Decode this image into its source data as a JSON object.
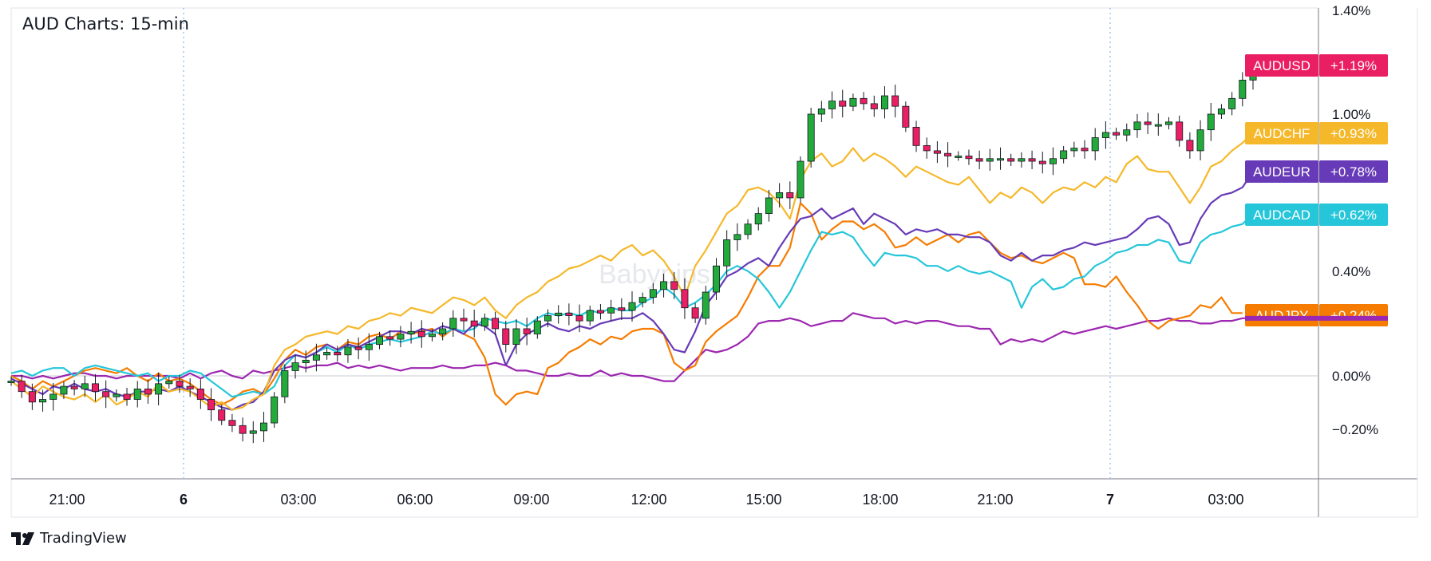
{
  "title": "AUD Charts: 15-min",
  "brand": "TradingView",
  "watermark": "Babypips",
  "chart_data": {
    "type": "line",
    "title": "AUD Charts: 15-min",
    "x_ticks": [
      "21:00",
      "6",
      "03:00",
      "06:00",
      "09:00",
      "12:00",
      "15:00",
      "18:00",
      "21:00",
      "7",
      "03:00"
    ],
    "y_ticks": [
      "1.40%",
      "1.00%",
      "0.40%",
      "0.00%",
      "−0.20%"
    ],
    "ylim": [
      -0.45,
      1.4
    ],
    "grid": false,
    "ylabel_position": "right",
    "series": [
      {
        "name": "AUDUSD",
        "label": "+1.19%",
        "color": "#e91e63",
        "style": "candlestick",
        "values": [
          -0.02,
          -0.06,
          -0.1,
          -0.09,
          -0.07,
          -0.04,
          -0.05,
          -0.03,
          -0.06,
          -0.08,
          -0.07,
          -0.09,
          -0.05,
          -0.07,
          -0.03,
          -0.02,
          -0.04,
          -0.05,
          -0.09,
          -0.13,
          -0.17,
          -0.19,
          -0.22,
          -0.21,
          -0.18,
          -0.08,
          0.02,
          0.05,
          0.06,
          0.08,
          0.09,
          0.08,
          0.11,
          0.1,
          0.12,
          0.15,
          0.14,
          0.16,
          0.17,
          0.15,
          0.16,
          0.18,
          0.22,
          0.21,
          0.19,
          0.22,
          0.18,
          0.12,
          0.18,
          0.16,
          0.21,
          0.23,
          0.24,
          0.23,
          0.21,
          0.25,
          0.24,
          0.26,
          0.25,
          0.28,
          0.3,
          0.33,
          0.36,
          0.33,
          0.26,
          0.22,
          0.32,
          0.42,
          0.52,
          0.54,
          0.58,
          0.62,
          0.68,
          0.7,
          0.68,
          0.82,
          1.0,
          1.02,
          1.05,
          1.03,
          1.06,
          1.04,
          1.02,
          1.07,
          1.03,
          0.95,
          0.88,
          0.86,
          0.85,
          0.84,
          0.84,
          0.83,
          0.82,
          0.83,
          0.83,
          0.82,
          0.83,
          0.82,
          0.81,
          0.83,
          0.86,
          0.87,
          0.86,
          0.91,
          0.93,
          0.92,
          0.94,
          0.97,
          0.96,
          0.96,
          0.97,
          0.9,
          0.86,
          0.94,
          1.0,
          1.02,
          1.06,
          1.13,
          1.19
        ]
      },
      {
        "name": "AUDCHF",
        "label": "+0.93%",
        "color": "#f5b82a",
        "values": [
          -0.02,
          -0.05,
          -0.08,
          -0.04,
          -0.06,
          -0.08,
          -0.09,
          -0.07,
          -0.1,
          -0.07,
          -0.11,
          -0.09,
          -0.06,
          -0.08,
          -0.03,
          -0.06,
          -0.05,
          -0.06,
          -0.09,
          -0.12,
          -0.1,
          -0.13,
          -0.12,
          -0.09,
          -0.07,
          0.04,
          0.1,
          0.12,
          0.15,
          0.16,
          0.17,
          0.16,
          0.19,
          0.18,
          0.21,
          0.22,
          0.24,
          0.23,
          0.26,
          0.25,
          0.24,
          0.27,
          0.3,
          0.29,
          0.27,
          0.3,
          0.25,
          0.22,
          0.27,
          0.3,
          0.32,
          0.36,
          0.38,
          0.41,
          0.42,
          0.44,
          0.46,
          0.44,
          0.48,
          0.5,
          0.46,
          0.48,
          0.44,
          0.38,
          0.3,
          0.42,
          0.48,
          0.55,
          0.62,
          0.65,
          0.71,
          0.72,
          0.7,
          0.66,
          0.6,
          0.75,
          0.82,
          0.85,
          0.8,
          0.82,
          0.87,
          0.82,
          0.85,
          0.83,
          0.8,
          0.76,
          0.8,
          0.78,
          0.76,
          0.74,
          0.73,
          0.76,
          0.71,
          0.66,
          0.7,
          0.68,
          0.72,
          0.7,
          0.66,
          0.7,
          0.72,
          0.71,
          0.74,
          0.72,
          0.76,
          0.74,
          0.81,
          0.84,
          0.79,
          0.78,
          0.78,
          0.72,
          0.66,
          0.72,
          0.8,
          0.82,
          0.86,
          0.89,
          0.93
        ]
      },
      {
        "name": "AUDEUR",
        "label": "+0.78%",
        "color": "#673ab7",
        "values": [
          -0.01,
          -0.03,
          -0.05,
          -0.07,
          -0.04,
          -0.05,
          -0.03,
          -0.05,
          -0.06,
          -0.05,
          -0.07,
          -0.08,
          -0.06,
          -0.06,
          -0.05,
          -0.06,
          -0.04,
          -0.06,
          -0.08,
          -0.1,
          -0.12,
          -0.13,
          -0.11,
          -0.1,
          -0.06,
          0.02,
          0.06,
          0.08,
          0.07,
          0.09,
          0.12,
          0.1,
          0.12,
          0.11,
          0.13,
          0.15,
          0.17,
          0.17,
          0.16,
          0.18,
          0.17,
          0.19,
          0.18,
          0.16,
          0.2,
          0.19,
          0.16,
          0.04,
          0.12,
          0.16,
          0.18,
          0.2,
          0.18,
          0.17,
          0.19,
          0.18,
          0.2,
          0.21,
          0.22,
          0.22,
          0.24,
          0.21,
          0.16,
          0.1,
          0.09,
          0.17,
          0.27,
          0.32,
          0.38,
          0.4,
          0.43,
          0.45,
          0.42,
          0.49,
          0.55,
          0.6,
          0.61,
          0.64,
          0.6,
          0.62,
          0.64,
          0.58,
          0.62,
          0.6,
          0.58,
          0.54,
          0.56,
          0.55,
          0.56,
          0.54,
          0.54,
          0.53,
          0.53,
          0.51,
          0.46,
          0.44,
          0.47,
          0.44,
          0.46,
          0.46,
          0.48,
          0.49,
          0.51,
          0.5,
          0.51,
          0.52,
          0.53,
          0.56,
          0.6,
          0.61,
          0.58,
          0.5,
          0.51,
          0.6,
          0.66,
          0.69,
          0.7,
          0.72,
          0.78
        ]
      },
      {
        "name": "AUDCAD",
        "label": "+0.62%",
        "color": "#26c6da",
        "values": [
          0.01,
          0.02,
          0.0,
          0.02,
          0.03,
          0.03,
          0.0,
          0.03,
          0.04,
          0.03,
          0.02,
          0.01,
          0.0,
          0.01,
          -0.02,
          0.0,
          0.0,
          0.02,
          0.01,
          -0.02,
          -0.05,
          -0.08,
          -0.07,
          -0.06,
          -0.07,
          -0.04,
          0.04,
          0.08,
          0.07,
          0.09,
          0.11,
          0.09,
          0.12,
          0.1,
          0.12,
          0.13,
          0.14,
          0.13,
          0.14,
          0.15,
          0.17,
          0.16,
          0.18,
          0.17,
          0.18,
          0.22,
          0.21,
          0.2,
          0.21,
          0.19,
          0.22,
          0.24,
          0.23,
          0.24,
          0.23,
          0.25,
          0.24,
          0.26,
          0.25,
          0.25,
          0.28,
          0.3,
          0.34,
          0.31,
          0.26,
          0.28,
          0.31,
          0.35,
          0.4,
          0.42,
          0.4,
          0.37,
          0.32,
          0.26,
          0.32,
          0.4,
          0.48,
          0.55,
          0.54,
          0.55,
          0.53,
          0.47,
          0.42,
          0.47,
          0.46,
          0.46,
          0.45,
          0.42,
          0.42,
          0.4,
          0.42,
          0.4,
          0.39,
          0.4,
          0.38,
          0.36,
          0.26,
          0.34,
          0.37,
          0.33,
          0.34,
          0.37,
          0.38,
          0.42,
          0.44,
          0.47,
          0.48,
          0.5,
          0.5,
          0.52,
          0.51,
          0.44,
          0.43,
          0.51,
          0.54,
          0.55,
          0.57,
          0.58,
          0.62
        ]
      },
      {
        "name": "AUDJPY",
        "label": "+0.24%",
        "color": "#f57c00",
        "values": [
          0.0,
          -0.02,
          -0.05,
          -0.02,
          -0.04,
          -0.02,
          0.0,
          0.02,
          0.03,
          0.02,
          0.01,
          0.03,
          0.0,
          -0.02,
          0.01,
          -0.02,
          -0.01,
          -0.03,
          -0.06,
          -0.09,
          -0.11,
          -0.09,
          -0.06,
          -0.05,
          -0.07,
          -0.01,
          0.06,
          0.1,
          0.08,
          0.11,
          0.12,
          0.1,
          0.13,
          0.12,
          0.15,
          0.16,
          0.14,
          0.17,
          0.16,
          0.17,
          0.18,
          0.15,
          0.18,
          0.16,
          0.14,
          0.07,
          -0.07,
          -0.11,
          -0.07,
          -0.06,
          -0.07,
          0.03,
          0.05,
          0.09,
          0.11,
          0.14,
          0.12,
          0.15,
          0.14,
          0.17,
          0.18,
          0.18,
          0.16,
          0.05,
          0.02,
          0.04,
          0.13,
          0.17,
          0.2,
          0.23,
          0.3,
          0.38,
          0.42,
          0.42,
          0.49,
          0.66,
          0.62,
          0.52,
          0.56,
          0.59,
          0.59,
          0.56,
          0.58,
          0.55,
          0.49,
          0.5,
          0.53,
          0.5,
          0.52,
          0.54,
          0.51,
          0.54,
          0.55,
          0.51,
          0.47,
          0.45,
          0.46,
          0.44,
          0.43,
          0.45,
          0.47,
          0.45,
          0.35,
          0.35,
          0.34,
          0.38,
          0.32,
          0.27,
          0.21,
          0.18,
          0.21,
          0.22,
          0.23,
          0.27,
          0.26,
          0.3,
          0.24,
          0.24
        ]
      },
      {
        "name": "",
        "label": "",
        "color": "#9c27b0",
        "values": [
          0.0,
          0.0,
          -0.01,
          0.0,
          -0.01,
          0.0,
          0.01,
          0.01,
          0.0,
          0.0,
          -0.01,
          0.0,
          0.0,
          0.0,
          0.0,
          0.0,
          -0.01,
          0.01,
          -0.01,
          0.01,
          0.02,
          0.0,
          -0.01,
          0.02,
          0.01,
          0.02,
          0.03,
          0.04,
          0.03,
          0.04,
          0.04,
          0.05,
          0.03,
          0.04,
          0.03,
          0.04,
          0.03,
          0.02,
          0.03,
          0.03,
          0.03,
          0.04,
          0.03,
          0.03,
          0.04,
          0.04,
          0.05,
          0.04,
          0.02,
          0.02,
          0.01,
          0.0,
          0.0,
          0.01,
          0.0,
          0.0,
          0.02,
          0.0,
          0.01,
          0.0,
          0.0,
          -0.01,
          -0.02,
          -0.02,
          0.02,
          0.06,
          0.1,
          0.09,
          0.1,
          0.12,
          0.15,
          0.2,
          0.21,
          0.21,
          0.22,
          0.21,
          0.19,
          0.2,
          0.21,
          0.21,
          0.24,
          0.23,
          0.22,
          0.22,
          0.2,
          0.21,
          0.2,
          0.21,
          0.21,
          0.2,
          0.19,
          0.19,
          0.18,
          0.18,
          0.12,
          0.14,
          0.13,
          0.14,
          0.13,
          0.15,
          0.17,
          0.16,
          0.17,
          0.18,
          0.19,
          0.18,
          0.19,
          0.2,
          0.21,
          0.21,
          0.22,
          0.21,
          0.21,
          0.2,
          0.2,
          0.21,
          0.21,
          0.22,
          0.22
        ]
      }
    ]
  }
}
